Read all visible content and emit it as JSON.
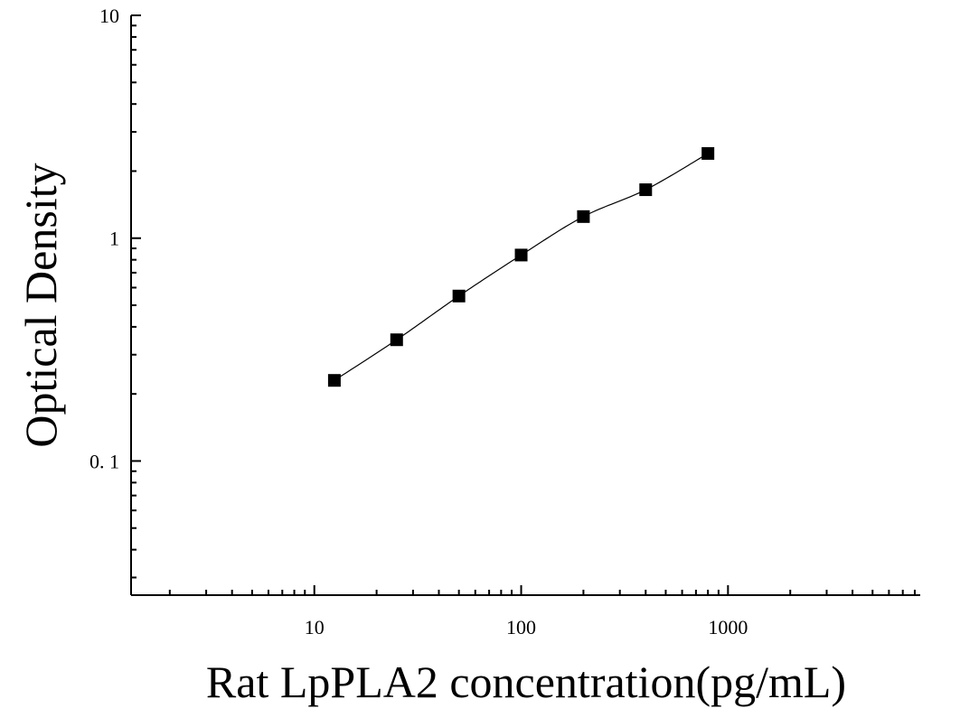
{
  "chart_data": {
    "type": "scatter",
    "title": "",
    "xlabel": "Rat LpPLA2 concentration(pg/mL)",
    "ylabel": "Optical Density",
    "x_scale": "log",
    "y_scale": "log",
    "xlim": [
      1.3,
      8500
    ],
    "ylim": [
      0.025,
      10
    ],
    "x_tick_labels": [
      {
        "value": 10,
        "label": "10"
      },
      {
        "value": 100,
        "label": "100"
      },
      {
        "value": 1000,
        "label": "1000"
      }
    ],
    "y_tick_labels": [
      {
        "value": 0.1,
        "label": "0. 1"
      },
      {
        "value": 1,
        "label": "1"
      },
      {
        "value": 10,
        "label": "10"
      }
    ],
    "grid": false,
    "legend": "none",
    "series": [
      {
        "marker": "square",
        "color": "#000000",
        "x": [
          12.5,
          25,
          50,
          100,
          200,
          400,
          800
        ],
        "y": [
          0.23,
          0.35,
          0.55,
          0.84,
          1.25,
          1.65,
          2.4
        ]
      }
    ],
    "fit_curve": {
      "type": "line",
      "color": "#000000"
    }
  }
}
